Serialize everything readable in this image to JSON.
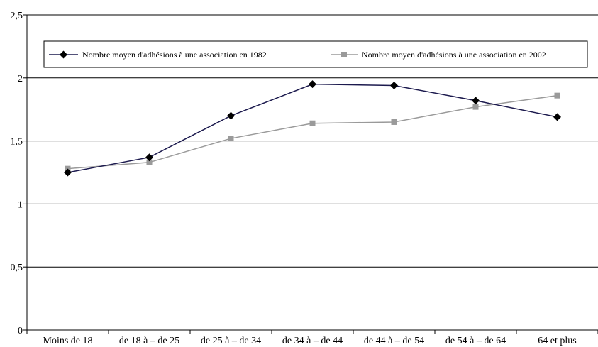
{
  "chart_data": {
    "type": "line",
    "title": "",
    "xlabel": "",
    "ylabel": "",
    "categories": [
      "Moins de 18",
      "de 18 à – de 25",
      "de 25 à – de 34",
      "de 34 à – de 44",
      "de 44 à – de 54",
      "de 54 à – de 64",
      "64 et plus"
    ],
    "ylim": [
      0,
      2.5
    ],
    "yticks": [
      0,
      0.5,
      1,
      1.5,
      2,
      2.5
    ],
    "ytick_labels": [
      "0",
      "0,5",
      "1",
      "1,5",
      "2",
      "2,5"
    ],
    "grid": true,
    "legend_position": "top",
    "series": [
      {
        "name": "Nombre moyen d'adhésions à une association en 1982",
        "values": [
          1.25,
          1.37,
          1.7,
          1.95,
          1.94,
          1.82,
          1.69
        ],
        "color": "#1c1a4e",
        "marker_color": "#000000",
        "marker": "diamond"
      },
      {
        "name": "Nombre moyen d'adhésions à une association en 2002",
        "values": [
          1.28,
          1.33,
          1.52,
          1.64,
          1.65,
          1.77,
          1.86
        ],
        "color": "#9a9a9a",
        "marker_color": "#9a9a9a",
        "marker": "square"
      }
    ]
  }
}
